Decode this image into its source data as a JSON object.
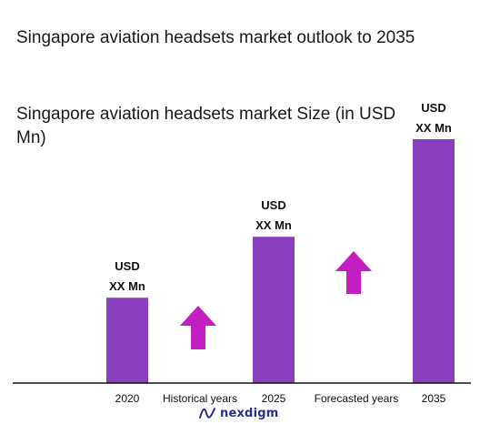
{
  "title": "Singapore aviation headsets market outlook to 2035",
  "chart_data": {
    "type": "bar",
    "title": "Singapore aviation headsets market Size (in USD Mn)",
    "xlabel": "",
    "ylabel": "",
    "categories": [
      "2020",
      "2025",
      "2035"
    ],
    "values": [
      0.35,
      0.6,
      1.0
    ],
    "value_labels": [
      [
        "USD",
        "XX Mn"
      ],
      [
        "USD",
        "XX Mn"
      ],
      [
        "USD",
        "XX Mn"
      ]
    ],
    "ylim": [
      0,
      1.1
    ],
    "grid": false,
    "bar_color": "#8a3fbf",
    "arrow_color": "#c21ec2",
    "period_labels": [
      "Historical years",
      "Forecasted years"
    ]
  },
  "logo": {
    "text": "nexdigm",
    "color": "#2a2f8f"
  }
}
